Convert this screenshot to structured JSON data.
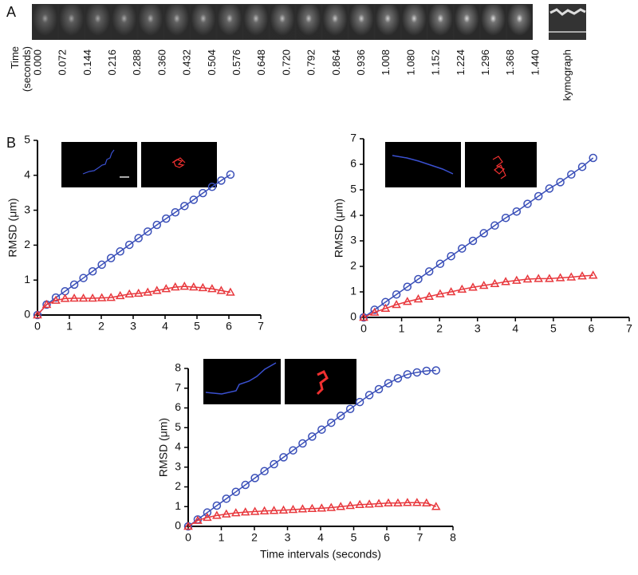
{
  "panel_a": {
    "label": "A",
    "time_label": "Time\n(seconds)",
    "times": [
      "0.000",
      "0.072",
      "0.144",
      "0.216",
      "0.288",
      "0.360",
      "0.432",
      "0.504",
      "0.576",
      "0.648",
      "0.720",
      "0.792",
      "0.864",
      "0.936",
      "1.008",
      "1.080",
      "1.152",
      "1.224",
      "1.296",
      "1.368",
      "1.440"
    ],
    "kymograph_label": "kymograph"
  },
  "panel_b": {
    "label": "B"
  },
  "chart_data": [
    {
      "type": "line",
      "x": [
        0,
        0.288,
        0.576,
        0.864,
        1.152,
        1.44,
        1.728,
        2.016,
        2.304,
        2.592,
        2.88,
        3.168,
        3.456,
        3.744,
        4.032,
        4.32,
        4.608,
        4.896,
        5.184,
        5.472,
        5.76,
        6.048
      ],
      "series": [
        {
          "color": "#3a4fb8",
          "marker": "circle",
          "values": [
            0,
            0.3,
            0.5,
            0.68,
            0.87,
            1.06,
            1.25,
            1.44,
            1.63,
            1.82,
            2.01,
            2.2,
            2.39,
            2.58,
            2.76,
            2.94,
            3.12,
            3.3,
            3.49,
            3.67,
            3.85,
            4.02
          ]
        },
        {
          "color": "#e8383d",
          "marker": "triangle",
          "values": [
            0,
            0.3,
            0.42,
            0.47,
            0.48,
            0.48,
            0.48,
            0.49,
            0.5,
            0.55,
            0.6,
            0.62,
            0.65,
            0.7,
            0.75,
            0.8,
            0.82,
            0.8,
            0.78,
            0.75,
            0.7,
            0.65
          ]
        }
      ],
      "xlim": [
        0,
        7
      ],
      "ylim": [
        0,
        5
      ],
      "xticks": [
        0,
        1,
        2,
        3,
        4,
        5,
        6,
        7
      ],
      "yticks": [
        0,
        1,
        2,
        3,
        4,
        5
      ],
      "ylabel": "RMSD (μm)"
    },
    {
      "type": "line",
      "x": [
        0,
        0.288,
        0.576,
        0.864,
        1.152,
        1.44,
        1.728,
        2.016,
        2.304,
        2.592,
        2.88,
        3.168,
        3.456,
        3.744,
        4.032,
        4.32,
        4.608,
        4.896,
        5.184,
        5.472,
        5.76,
        6.048
      ],
      "series": [
        {
          "color": "#3a4fb8",
          "marker": "circle",
          "values": [
            0,
            0.3,
            0.6,
            0.9,
            1.2,
            1.5,
            1.8,
            2.1,
            2.4,
            2.7,
            3.0,
            3.3,
            3.6,
            3.9,
            4.15,
            4.45,
            4.75,
            5.05,
            5.3,
            5.6,
            5.9,
            6.25
          ]
        },
        {
          "color": "#e8383d",
          "marker": "triangle",
          "values": [
            0,
            0.2,
            0.35,
            0.5,
            0.62,
            0.72,
            0.82,
            0.92,
            1.0,
            1.1,
            1.18,
            1.25,
            1.32,
            1.4,
            1.45,
            1.5,
            1.52,
            1.52,
            1.55,
            1.58,
            1.62,
            1.65
          ]
        }
      ],
      "xlim": [
        0,
        7
      ],
      "ylim": [
        0,
        7
      ],
      "xticks": [
        0,
        1,
        2,
        3,
        4,
        5,
        6,
        7
      ],
      "yticks": [
        0,
        1,
        2,
        3,
        4,
        5,
        6,
        7
      ],
      "ylabel": "RMSD (μm)"
    },
    {
      "type": "line",
      "x": [
        0,
        0.288,
        0.576,
        0.864,
        1.152,
        1.44,
        1.728,
        2.016,
        2.304,
        2.592,
        2.88,
        3.168,
        3.456,
        3.744,
        4.032,
        4.32,
        4.608,
        4.896,
        5.184,
        5.472,
        5.76,
        6.048,
        6.336,
        6.624,
        6.912,
        7.2,
        7.488
      ],
      "series": [
        {
          "color": "#3a4fb8",
          "marker": "circle",
          "values": [
            0,
            0.35,
            0.7,
            1.05,
            1.4,
            1.75,
            2.1,
            2.45,
            2.8,
            3.15,
            3.5,
            3.85,
            4.2,
            4.55,
            4.9,
            5.25,
            5.6,
            5.95,
            6.3,
            6.65,
            6.95,
            7.25,
            7.5,
            7.7,
            7.8,
            7.88,
            7.9
          ]
        },
        {
          "color": "#e8383d",
          "marker": "triangle",
          "values": [
            0,
            0.3,
            0.45,
            0.55,
            0.62,
            0.68,
            0.72,
            0.75,
            0.78,
            0.8,
            0.82,
            0.85,
            0.88,
            0.9,
            0.92,
            0.95,
            1.0,
            1.05,
            1.1,
            1.12,
            1.15,
            1.18,
            1.18,
            1.2,
            1.2,
            1.18,
            1.0
          ]
        }
      ],
      "xlim": [
        0,
        8
      ],
      "ylim": [
        0,
        8
      ],
      "xticks": [
        0,
        1,
        2,
        3,
        4,
        5,
        6,
        7,
        8
      ],
      "yticks": [
        0,
        1,
        2,
        3,
        4,
        5,
        6,
        7,
        8
      ],
      "xlabel": "Time intervals (seconds)",
      "ylabel": "RMSD (μm)"
    }
  ]
}
